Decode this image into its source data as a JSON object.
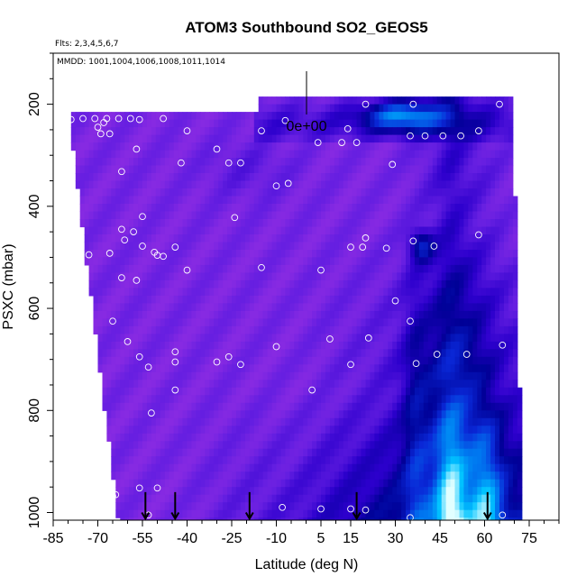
{
  "chart_data": {
    "type": "heatmap",
    "title": "ATOM3 Southbound SO2_GEOS5",
    "subtitle_flights": "Flts: 2,3,4,5,6,7",
    "subtitle_dates": "MMDD: 1001,1004,1006,1008,1011,1014",
    "xlabel": "Latitude (deg N)",
    "ylabel": "PSXC (mbar)",
    "xlim": [
      -85,
      85
    ],
    "ylim": [
      1015,
      100
    ],
    "y_reversed": true,
    "x_ticks": [
      -85,
      -70,
      -55,
      -40,
      -25,
      -10,
      5,
      15,
      30,
      45,
      60,
      75
    ],
    "x_tick_labels": [
      "-85",
      "-70",
      "-55",
      "-40",
      "-25",
      "-10",
      "5",
      "15",
      "30",
      "45",
      "60",
      "75"
    ],
    "y_ticks": [
      200,
      400,
      600,
      800,
      1000
    ],
    "y_tick_labels": [
      "200",
      "400",
      "600",
      "800",
      "1000"
    ],
    "colorbar_label": "0e+00",
    "colors": {
      "low": "#8a2be2",
      "mid": "#0000cd",
      "high": "#00bfff",
      "peak": "#e0ffff"
    },
    "arrows_latitude": [
      -54,
      -44,
      -19,
      17,
      61
    ],
    "points": [
      [
        -79,
        230
      ],
      [
        -75,
        228
      ],
      [
        -71,
        228
      ],
      [
        -70,
        245
      ],
      [
        -68,
        236
      ],
      [
        -67,
        228
      ],
      [
        -66,
        258
      ],
      [
        -69,
        258
      ],
      [
        -63,
        228
      ],
      [
        -59,
        228
      ],
      [
        -56,
        230
      ],
      [
        -48,
        228
      ],
      [
        -40,
        252
      ],
      [
        -30,
        288
      ],
      [
        -15,
        252
      ],
      [
        -7,
        232
      ],
      [
        4,
        275
      ],
      [
        14,
        248
      ],
      [
        12,
        275
      ],
      [
        17,
        275
      ],
      [
        -57,
        288
      ],
      [
        -42,
        315
      ],
      [
        -26,
        315
      ],
      [
        -22,
        315
      ],
      [
        -6,
        355
      ],
      [
        -10,
        360
      ],
      [
        20,
        200
      ],
      [
        36,
        200
      ],
      [
        65,
        200
      ],
      [
        29,
        318
      ],
      [
        35,
        262
      ],
      [
        40,
        262
      ],
      [
        46,
        262
      ],
      [
        52,
        262
      ],
      [
        58,
        252
      ],
      [
        -62,
        332
      ],
      [
        -55,
        420
      ],
      [
        -24,
        422
      ],
      [
        -62,
        445
      ],
      [
        -58,
        450
      ],
      [
        -66,
        492
      ],
      [
        -61,
        466
      ],
      [
        -73,
        495
      ],
      [
        -55,
        478
      ],
      [
        -51,
        490
      ],
      [
        -50,
        496
      ],
      [
        -48,
        498
      ],
      [
        -44,
        480
      ],
      [
        -40,
        525
      ],
      [
        -15,
        520
      ],
      [
        5,
        525
      ],
      [
        15,
        480
      ],
      [
        19,
        480
      ],
      [
        20,
        462
      ],
      [
        27,
        482
      ],
      [
        36,
        468
      ],
      [
        43,
        478
      ],
      [
        58,
        456
      ],
      [
        -62,
        540
      ],
      [
        -57,
        545
      ],
      [
        30,
        585
      ],
      [
        -65,
        625
      ],
      [
        -60,
        665
      ],
      [
        -56,
        695
      ],
      [
        -53,
        715
      ],
      [
        -44,
        685
      ],
      [
        -44,
        705
      ],
      [
        -30,
        705
      ],
      [
        -26,
        695
      ],
      [
        -22,
        710
      ],
      [
        -10,
        675
      ],
      [
        2,
        760
      ],
      [
        8,
        660
      ],
      [
        15,
        710
      ],
      [
        21,
        658
      ],
      [
        35,
        625
      ],
      [
        37,
        708
      ],
      [
        44,
        690
      ],
      [
        54,
        690
      ],
      [
        66,
        672
      ],
      [
        -44,
        760
      ],
      [
        -52,
        805
      ],
      [
        -68,
        947
      ],
      [
        -65,
        968
      ],
      [
        -64,
        965
      ],
      [
        -56,
        952
      ],
      [
        -50,
        952
      ],
      [
        -8,
        990
      ],
      [
        5,
        993
      ],
      [
        15,
        993
      ],
      [
        20,
        995
      ],
      [
        35,
        1010
      ],
      [
        66,
        1005
      ],
      [
        -53,
        1005
      ]
    ]
  }
}
